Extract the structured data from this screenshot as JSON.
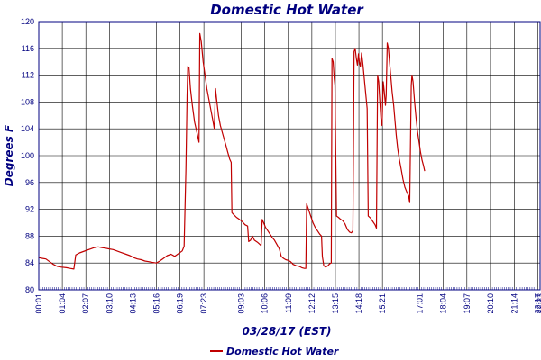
{
  "chart_data": {
    "type": "line",
    "title": "Domestic Hot Water",
    "xlabel": "03/28/17 (EST)",
    "ylabel": "Degrees F",
    "ylim": [
      80,
      120
    ],
    "yticks": [
      80,
      84,
      88,
      92,
      96,
      100,
      104,
      108,
      112,
      116,
      120
    ],
    "xlim": [
      1,
      1343
    ],
    "xticks": [
      {
        "label": "00:01",
        "t": 1
      },
      {
        "label": "01:04",
        "t": 64
      },
      {
        "label": "02:07",
        "t": 127
      },
      {
        "label": "03:10",
        "t": 190
      },
      {
        "label": "04:13",
        "t": 253
      },
      {
        "label": "05:16",
        "t": 316
      },
      {
        "label": "06:19",
        "t": 379
      },
      {
        "label": "07:23",
        "t": 443
      },
      {
        "label": "09:03",
        "t": 543
      },
      {
        "label": "10:06",
        "t": 606
      },
      {
        "label": "11:09",
        "t": 669
      },
      {
        "label": "12:12",
        "t": 732
      },
      {
        "label": "13:15",
        "t": 795
      },
      {
        "label": "14:18",
        "t": 858
      },
      {
        "label": "15:21",
        "t": 921
      },
      {
        "label": "17:01",
        "t": 1021
      },
      {
        "label": "18:04",
        "t": 1084
      },
      {
        "label": "19:07",
        "t": 1147
      },
      {
        "label": "20:10",
        "t": 1210
      },
      {
        "label": "21:14",
        "t": 1274
      },
      {
        "label": "22:17",
        "t": 1337
      },
      {
        "label": "22:23",
        "t": 1343
      }
    ],
    "grid": true,
    "legend_position": "bottom-center",
    "series": [
      {
        "name": "Domestic Hot Water",
        "color": "#c00000",
        "points": [
          [
            1,
            84.8
          ],
          [
            10,
            84.7
          ],
          [
            20,
            84.6
          ],
          [
            30,
            84.2
          ],
          [
            40,
            83.8
          ],
          [
            50,
            83.5
          ],
          [
            60,
            83.4
          ],
          [
            75,
            83.3
          ],
          [
            85,
            83.2
          ],
          [
            95,
            83.1
          ],
          [
            100,
            85.2
          ],
          [
            110,
            85.5
          ],
          [
            120,
            85.7
          ],
          [
            130,
            85.9
          ],
          [
            140,
            86.1
          ],
          [
            150,
            86.3
          ],
          [
            160,
            86.4
          ],
          [
            170,
            86.3
          ],
          [
            180,
            86.2
          ],
          [
            190,
            86.1
          ],
          [
            200,
            86.0
          ],
          [
            210,
            85.8
          ],
          [
            220,
            85.6
          ],
          [
            235,
            85.3
          ],
          [
            245,
            85.1
          ],
          [
            255,
            84.8
          ],
          [
            265,
            84.6
          ],
          [
            275,
            84.5
          ],
          [
            285,
            84.3
          ],
          [
            295,
            84.2
          ],
          [
            305,
            84.1
          ],
          [
            316,
            84.0
          ],
          [
            325,
            84.3
          ],
          [
            335,
            84.7
          ],
          [
            345,
            85.1
          ],
          [
            355,
            85.3
          ],
          [
            365,
            85.0
          ],
          [
            375,
            85.4
          ],
          [
            385,
            85.8
          ],
          [
            390,
            86.5
          ],
          [
            395,
            98
          ],
          [
            398,
            109
          ],
          [
            400,
            113.3
          ],
          [
            403,
            113.1
          ],
          [
            407,
            110
          ],
          [
            412,
            107.5
          ],
          [
            418,
            105
          ],
          [
            424,
            103.5
          ],
          [
            430,
            102
          ],
          [
            432,
            118.2
          ],
          [
            436,
            117
          ],
          [
            441,
            114
          ],
          [
            446,
            112
          ],
          [
            451,
            110
          ],
          [
            456,
            108.5
          ],
          [
            461,
            107
          ],
          [
            466,
            105.5
          ],
          [
            471,
            104
          ],
          [
            474,
            110
          ],
          [
            478,
            108
          ],
          [
            482,
            106
          ],
          [
            487,
            104.5
          ],
          [
            492,
            103.5
          ],
          [
            497,
            102.5
          ],
          [
            502,
            101.5
          ],
          [
            507,
            100.5
          ],
          [
            512,
            99.5
          ],
          [
            516,
            99
          ],
          [
            518,
            91.5
          ],
          [
            523,
            91.2
          ],
          [
            530,
            90.8
          ],
          [
            538,
            90.5
          ],
          [
            545,
            90.2
          ],
          [
            553,
            89.7
          ],
          [
            560,
            89.5
          ],
          [
            563,
            87.2
          ],
          [
            568,
            87.4
          ],
          [
            573,
            88
          ],
          [
            578,
            87.4
          ],
          [
            586,
            87.1
          ],
          [
            592,
            86.8
          ],
          [
            596,
            86.6
          ],
          [
            599,
            90.5
          ],
          [
            603,
            90
          ],
          [
            608,
            89.3
          ],
          [
            614,
            88.8
          ],
          [
            620,
            88.3
          ],
          [
            626,
            87.8
          ],
          [
            632,
            87.4
          ],
          [
            638,
            86.8
          ],
          [
            645,
            86.1
          ],
          [
            650,
            85
          ],
          [
            656,
            84.7
          ],
          [
            662,
            84.5
          ],
          [
            668,
            84.4
          ],
          [
            675,
            84.2
          ],
          [
            682,
            83.8
          ],
          [
            690,
            83.6
          ],
          [
            698,
            83.5
          ],
          [
            705,
            83.3
          ],
          [
            712,
            83.2
          ],
          [
            716,
            83.2
          ],
          [
            718,
            92.8
          ],
          [
            723,
            92
          ],
          [
            729,
            91
          ],
          [
            735,
            90
          ],
          [
            741,
            89.3
          ],
          [
            747,
            88.8
          ],
          [
            753,
            88.3
          ],
          [
            758,
            88
          ],
          [
            760,
            85
          ],
          [
            764,
            83.6
          ],
          [
            769,
            83.4
          ],
          [
            775,
            83.6
          ],
          [
            780,
            83.9
          ],
          [
            784,
            84
          ],
          [
            786,
            114.5
          ],
          [
            789,
            114
          ],
          [
            792,
            111.5
          ],
          [
            794,
            110.5
          ],
          [
            796,
            100
          ],
          [
            798,
            91
          ],
          [
            803,
            90.8
          ],
          [
            809,
            90.5
          ],
          [
            815,
            90.3
          ],
          [
            821,
            89.8
          ],
          [
            827,
            89
          ],
          [
            833,
            88.6
          ],
          [
            838,
            88.5
          ],
          [
            842,
            88.8
          ],
          [
            845,
            115.5
          ],
          [
            848,
            116
          ],
          [
            851,
            114.5
          ],
          [
            854,
            113.5
          ],
          [
            857,
            115.2
          ],
          [
            859,
            114
          ],
          [
            862,
            113.3
          ],
          [
            865,
            115.3
          ],
          [
            869,
            113.5
          ],
          [
            874,
            110.5
          ],
          [
            880,
            107
          ],
          [
            883,
            91
          ],
          [
            889,
            90.7
          ],
          [
            895,
            90.2
          ],
          [
            901,
            89.7
          ],
          [
            905,
            89.2
          ],
          [
            908,
            112
          ],
          [
            911,
            111
          ],
          [
            914,
            108
          ],
          [
            917,
            105.5
          ],
          [
            920,
            104.5
          ],
          [
            923,
            111
          ],
          [
            926,
            109.5
          ],
          [
            929,
            107.5
          ],
          [
            931,
            109
          ],
          [
            934,
            116.8
          ],
          [
            937,
            116
          ],
          [
            940,
            114
          ],
          [
            943,
            112
          ],
          [
            947,
            109.5
          ],
          [
            951,
            107.5
          ],
          [
            955,
            105
          ],
          [
            958,
            103
          ],
          [
            962,
            101
          ],
          [
            966,
            99.5
          ],
          [
            971,
            98
          ],
          [
            976,
            96.5
          ],
          [
            981,
            95.3
          ],
          [
            986,
            94.6
          ],
          [
            991,
            94
          ],
          [
            994,
            93
          ],
          [
            998,
            110.5
          ],
          [
            1000,
            112
          ],
          [
            1003,
            111
          ],
          [
            1007,
            108
          ],
          [
            1011,
            105.5
          ],
          [
            1015,
            103.5
          ],
          [
            1019,
            102
          ],
          [
            1023,
            100.5
          ],
          [
            1027,
            99.3
          ],
          [
            1031,
            98.5
          ],
          [
            1034,
            97.7
          ]
        ]
      }
    ]
  }
}
